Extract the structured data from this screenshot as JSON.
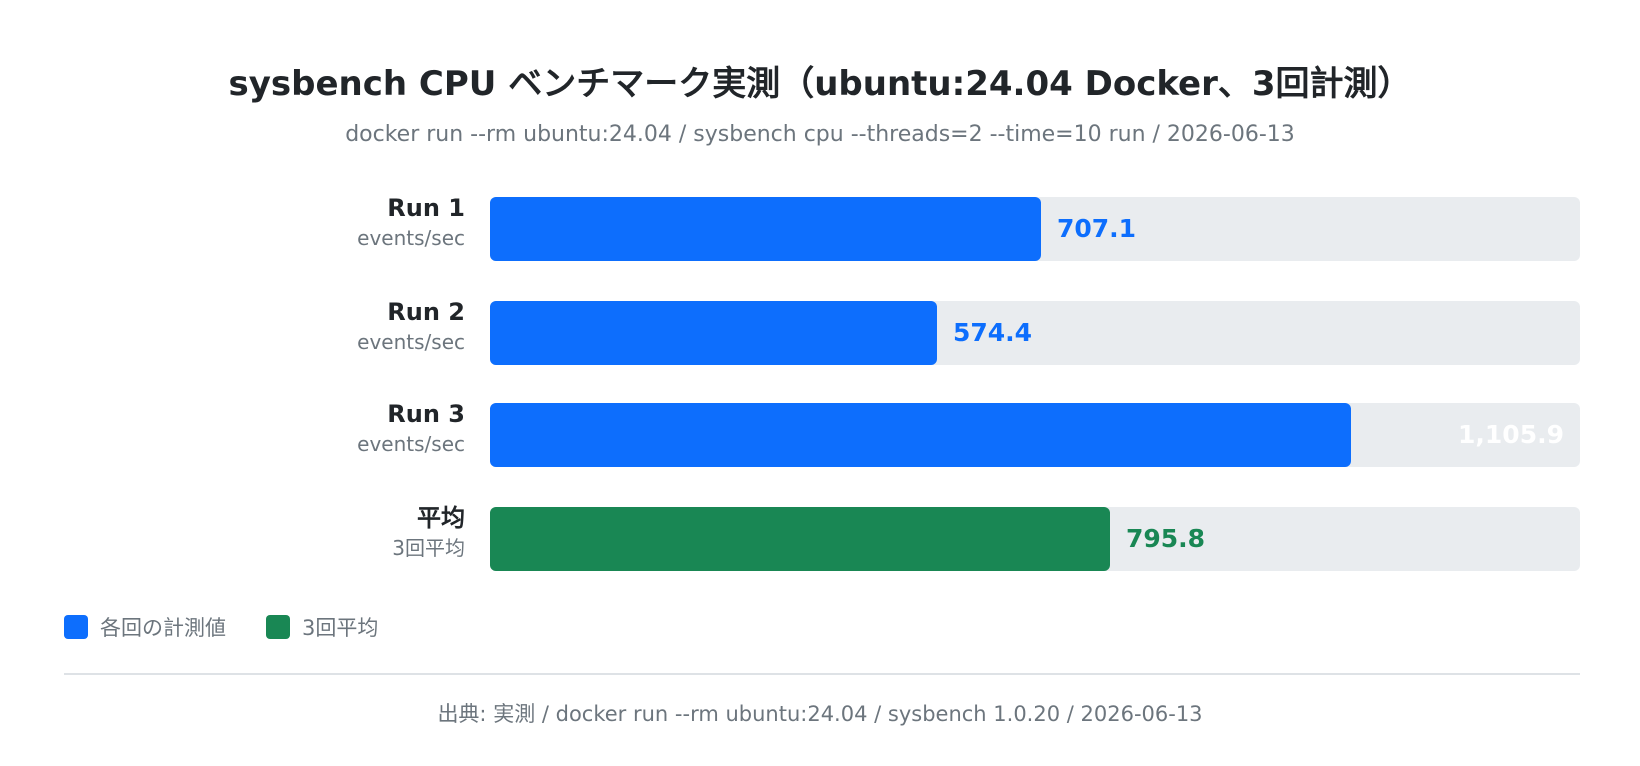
{
  "chart_data": {
    "type": "bar",
    "orientation": "horizontal",
    "title": "sysbench CPU ベンチマーク実測（ubuntu:24.04 Docker、3回計測）",
    "subtitle": "docker run --rm ubuntu:24.04 / sysbench cpu --threads=2 --time=10 run / 2026-06-13",
    "categories": [
      "Run 1",
      "Run 2",
      "Run 3",
      "平均"
    ],
    "category_sublabels": [
      "events/sec",
      "events/sec",
      "events/sec",
      "3回平均"
    ],
    "values": [
      707.1,
      574.4,
      1105.9,
      795.8
    ],
    "value_labels": [
      "707.1",
      "574.4",
      "1,105.9",
      "795.8"
    ],
    "bar_colors": [
      "#0d6efd",
      "#0d6efd",
      "#0d6efd",
      "#198754"
    ],
    "xlim": [
      0,
      1400
    ],
    "grid": false,
    "legend": {
      "placement": "bottom-left",
      "items": [
        {
          "label": "各回の計測値",
          "color": "#0d6efd"
        },
        {
          "label": "3回平均",
          "color": "#198754"
        }
      ]
    },
    "source": "出典: 実測 / docker run --rm ubuntu:24.04 / sysbench 1.0.20 / 2026-06-13"
  },
  "colors": {
    "track": "#e9ecef",
    "inside_label": "#ffffff"
  }
}
